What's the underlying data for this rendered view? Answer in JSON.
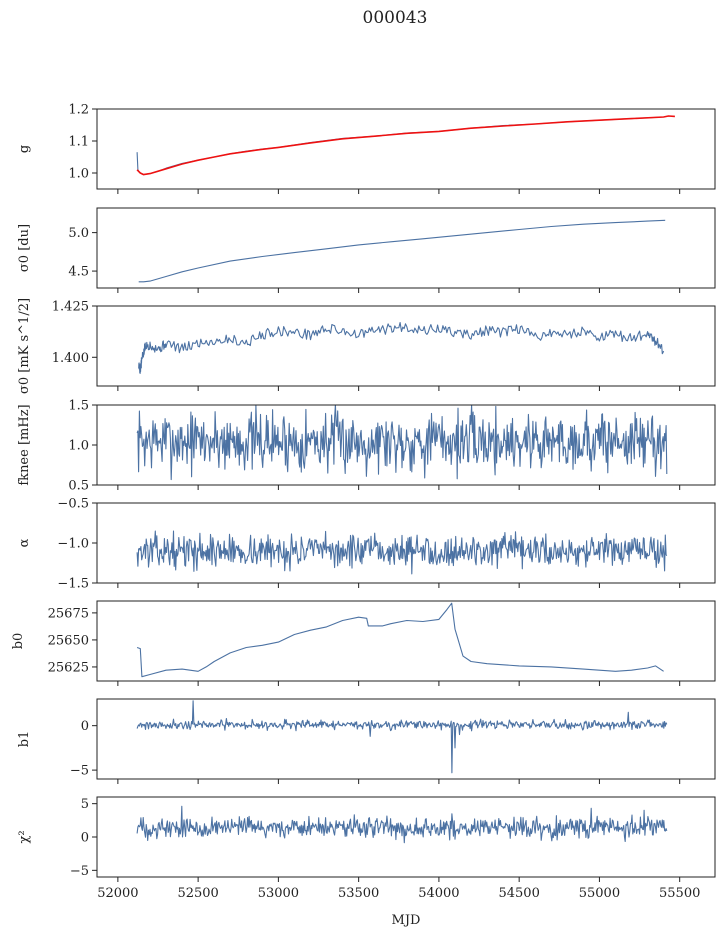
{
  "figure": {
    "title": "000043",
    "xlabel": "MJD"
  },
  "chart_data": {
    "type": "line",
    "title": "000043",
    "xlabel": "MJD",
    "xlim": [
      51870,
      55720
    ],
    "xticks": [
      "52000",
      "52500",
      "53000",
      "53500",
      "54000",
      "54500",
      "55000",
      "55500"
    ],
    "xtick_values": [
      52000,
      52500,
      53000,
      53500,
      54000,
      54500,
      55000,
      55500
    ],
    "x_start": 52120,
    "x_end": 55420,
    "panels": [
      {
        "id": "g",
        "ylabel": "g",
        "ylim": [
          0.95,
          1.2
        ],
        "yticks": [
          1.0,
          1.1,
          1.2
        ],
        "ytick_labels": [
          "1.0",
          "1.1",
          "1.2"
        ],
        "series": [
          {
            "x": [
              52120,
              52125,
              52130,
              52140,
              52160,
              52200,
              52250,
              52300,
              52400,
              52500,
              52600,
              52700,
              52800,
              52900,
              53000,
              53200,
              53400,
              53600,
              53800,
              54000,
              54200,
              54400,
              54600,
              54800,
              55000,
              55200,
              55400
            ],
            "y": [
              1.065,
              1.01,
              1.005,
              1.0,
              0.995,
              0.998,
              1.005,
              1.015,
              1.03,
              1.04,
              1.05,
              1.06,
              1.068,
              1.075,
              1.08,
              1.095,
              1.108,
              1.115,
              1.125,
              1.13,
              1.14,
              1.148,
              1.153,
              1.16,
              1.165,
              1.17,
              1.175
            ]
          },
          {
            "x": [
              52120,
              52140,
              52160,
              52200,
              52300,
              52400,
              52500,
              52600,
              52700,
              52800,
              52900,
              53000,
              53200,
              53400,
              53600,
              53800,
              54000,
              54200,
              54400,
              54600,
              54800,
              55000,
              55200,
              55400,
              55430,
              55470
            ],
            "y": [
              1.01,
              1.0,
              0.995,
              0.998,
              1.013,
              1.028,
              1.04,
              1.05,
              1.06,
              1.067,
              1.074,
              1.08,
              1.094,
              1.107,
              1.115,
              1.124,
              1.13,
              1.14,
              1.147,
              1.153,
              1.16,
              1.165,
              1.17,
              1.175,
              1.178,
              1.177
            ]
          }
        ]
      },
      {
        "id": "sigma0_du",
        "ylabel": "σ0 [du]",
        "ylim": [
          4.28,
          5.32
        ],
        "yticks": [
          4.5,
          5.0
        ],
        "ytick_labels": [
          "4.5",
          "5.0"
        ],
        "series": [
          {
            "x": [
              52130,
              52160,
              52200,
              52300,
              52400,
              52500,
              52700,
              52900,
              53100,
              53300,
              53500,
              53700,
              53900,
              54100,
              54300,
              54500,
              54700,
              54900,
              55100,
              55300,
              55410
            ],
            "y": [
              4.36,
              4.36,
              4.37,
              4.43,
              4.49,
              4.54,
              4.63,
              4.69,
              4.74,
              4.79,
              4.84,
              4.88,
              4.92,
              4.96,
              5.0,
              5.04,
              5.08,
              5.11,
              5.13,
              5.15,
              5.16
            ]
          }
        ]
      },
      {
        "id": "sigma0_mks",
        "ylabel": "σ0 [mK s^1/2]",
        "ylim": [
          1.386,
          1.425
        ],
        "yticks": [
          1.4,
          1.425
        ],
        "ytick_labels": [
          "1.400",
          "1.425"
        ],
        "series": [
          {
            "x": [
              52130,
              52140,
              52150,
              52170,
              52200,
              52260,
              52300,
              52400,
              52500,
              52600,
              52700,
              52800,
              52900,
              53000,
              53100,
              53200,
              53300,
              53400,
              53500,
              53600,
              53700,
              53800,
              53900,
              54000,
              54100,
              54200,
              54300,
              54400,
              54500,
              54600,
              54700,
              54800,
              54900,
              55000,
              55100,
              55200,
              55300,
              55350,
              55400
            ],
            "y": [
              1.396,
              1.394,
              1.399,
              1.405,
              1.406,
              1.404,
              1.407,
              1.404,
              1.407,
              1.408,
              1.409,
              1.407,
              1.411,
              1.413,
              1.412,
              1.411,
              1.414,
              1.413,
              1.411,
              1.413,
              1.414,
              1.415,
              1.413,
              1.414,
              1.412,
              1.411,
              1.413,
              1.412,
              1.414,
              1.41,
              1.412,
              1.411,
              1.413,
              1.41,
              1.411,
              1.409,
              1.412,
              1.408,
              1.403
            ]
          }
        ]
      },
      {
        "id": "f_knee",
        "ylabel": "fknee [mHz]",
        "ylim": [
          0.5,
          1.5
        ],
        "yticks": [
          0.5,
          1.0,
          1.5
        ],
        "ytick_labels": [
          "0.5",
          "1.0",
          "1.5"
        ],
        "noise": {
          "mean": 1.05,
          "amplitude": 0.42,
          "seed": 7
        },
        "series": []
      },
      {
        "id": "alpha",
        "ylabel": "α",
        "ylim": [
          -1.5,
          -0.5
        ],
        "yticks": [
          -1.5,
          -1.0,
          -0.5
        ],
        "ytick_labels": [
          "−1.5",
          "−1.0",
          "−0.5"
        ],
        "noise": {
          "mean": -1.1,
          "amplitude": 0.22,
          "seed": 13
        },
        "series": []
      },
      {
        "id": "b0",
        "ylabel": "b0",
        "ylim": [
          25612,
          25686
        ],
        "yticks": [
          25625,
          25650,
          25675
        ],
        "ytick_labels": [
          "25625",
          "25650",
          "25675"
        ],
        "series": [
          {
            "x": [
              52120,
              52140,
              52150,
              52200,
              52300,
              52400,
              52500,
              52550,
              52600,
              52700,
              52800,
              52900,
              53000,
              53100,
              53200,
              53300,
              53400,
              53500,
              53550,
              53560,
              53650,
              53700,
              53800,
              53900,
              54000,
              54050,
              54080,
              54100,
              54150,
              54200,
              54300,
              54500,
              54700,
              54900,
              55100,
              55200,
              55300,
              55350,
              55400
            ],
            "y": [
              25643,
              25642,
              25616,
              25618,
              25622,
              25623,
              25621,
              25625,
              25630,
              25638,
              25643,
              25645,
              25648,
              25655,
              25659,
              25662,
              25668,
              25671,
              25670,
              25663,
              25663,
              25665,
              25668,
              25667,
              25669,
              25678,
              25684,
              25660,
              25635,
              25630,
              25628,
              25626,
              25625,
              25623,
              25621,
              25622,
              25624,
              25626,
              25621
            ]
          }
        ]
      },
      {
        "id": "b1",
        "ylabel": "b1",
        "ylim": [
          -6,
          3
        ],
        "yticks": [
          -5,
          0
        ],
        "ytick_labels": [
          "−5",
          "0"
        ],
        "noise": {
          "mean": 0.1,
          "amplitude": 0.55,
          "seed": 21
        },
        "events": [
          {
            "x": 52470,
            "y": 2.8
          },
          {
            "x": 53570,
            "y": -1.2
          },
          {
            "x": 54080,
            "y": -5.3
          },
          {
            "x": 54100,
            "y": -2.5
          },
          {
            "x": 54130,
            "y": -1.0
          },
          {
            "x": 55180,
            "y": 1.5
          }
        ],
        "series": []
      },
      {
        "id": "chi2",
        "ylabel": "χ²",
        "ylim": [
          -6,
          6
        ],
        "yticks": [
          -5,
          0,
          5
        ],
        "ytick_labels": [
          "−5",
          "0",
          "5"
        ],
        "noise": {
          "mean": 1.4,
          "amplitude": 1.7,
          "seed": 33
        },
        "events": [
          {
            "x": 52400,
            "y": 4.6
          },
          {
            "x": 54950,
            "y": 4.3
          },
          {
            "x": 55280,
            "y": 4.0
          }
        ],
        "series": []
      }
    ]
  },
  "colors": {
    "data": "#4c72a3",
    "fit": "#ee1111",
    "axis": "#222222"
  }
}
